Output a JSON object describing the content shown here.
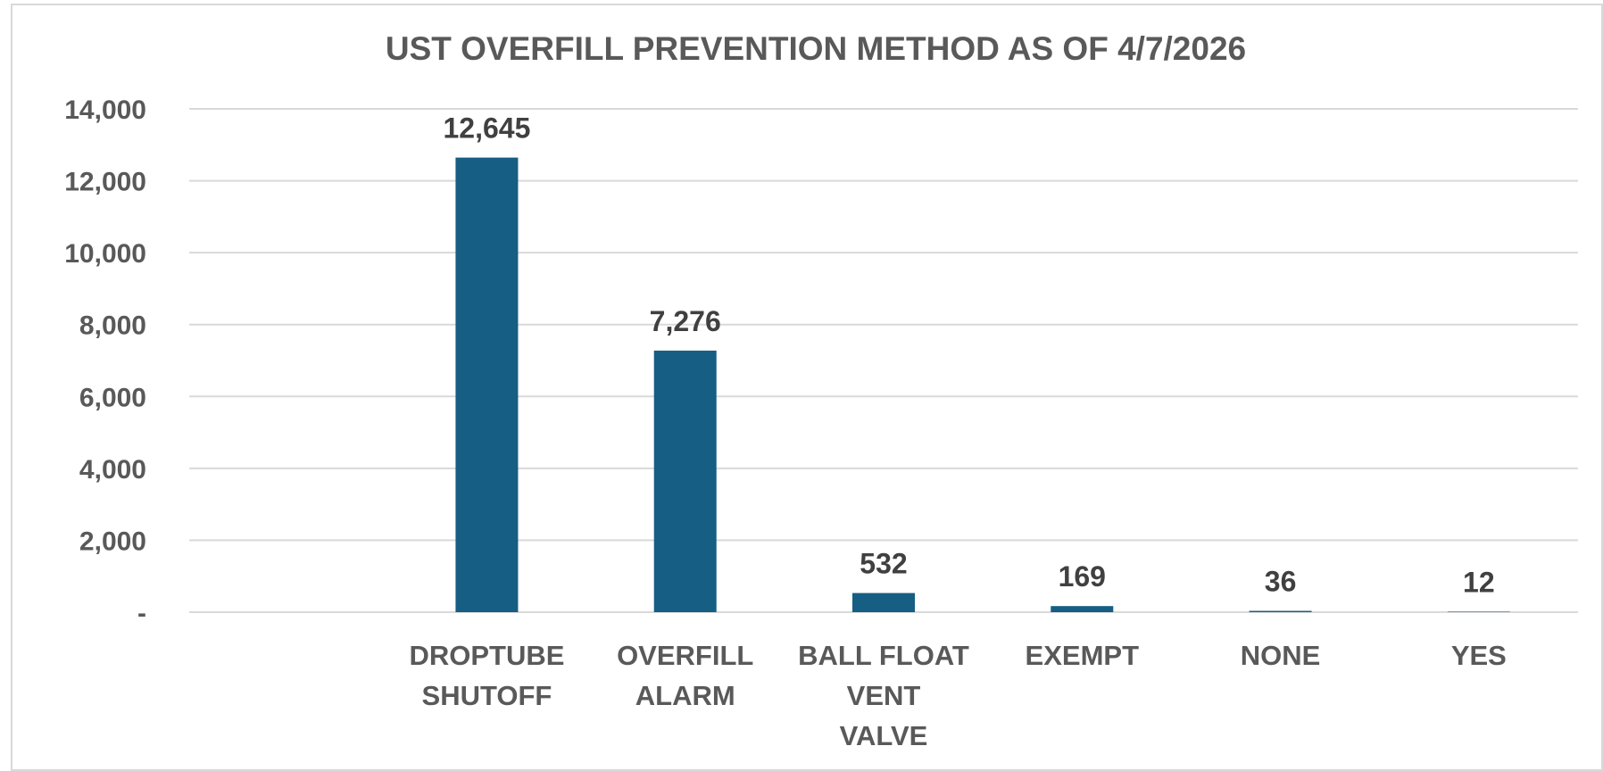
{
  "chart_data": {
    "type": "bar",
    "title": "UST OVERFILL PREVENTION METHOD AS OF 4/7/2026",
    "xlabel": "",
    "ylabel": "",
    "categories": [
      "",
      "DROPTUBE SHUTOFF",
      "OVERFILL ALARM",
      "BALL FLOAT VENT VALVE",
      "EXEMPT",
      "NONE",
      "YES"
    ],
    "category_lines": [
      [],
      [
        "DROPTUBE",
        "SHUTOFF"
      ],
      [
        "OVERFILL",
        "ALARM"
      ],
      [
        "BALL FLOAT",
        "VENT",
        "VALVE"
      ],
      [
        "EXEMPT"
      ],
      [
        "NONE"
      ],
      [
        "YES"
      ]
    ],
    "values": [
      null,
      12645,
      7276,
      532,
      169,
      36,
      12
    ],
    "data_labels": [
      "",
      "12,645",
      "7,276",
      "532",
      "169",
      "36",
      "12"
    ],
    "ylim": [
      0,
      14000
    ],
    "yticks": [
      0,
      2000,
      4000,
      6000,
      8000,
      10000,
      12000,
      14000
    ],
    "ytick_labels": [
      "-",
      "2,000",
      "4,000",
      "6,000",
      "8,000",
      "10,000",
      "12,000",
      "14,000"
    ],
    "grid": true,
    "legend": "none",
    "bar_color": "#165e83",
    "grid_color": "#d9d9d9",
    "text_color": "#595959"
  }
}
